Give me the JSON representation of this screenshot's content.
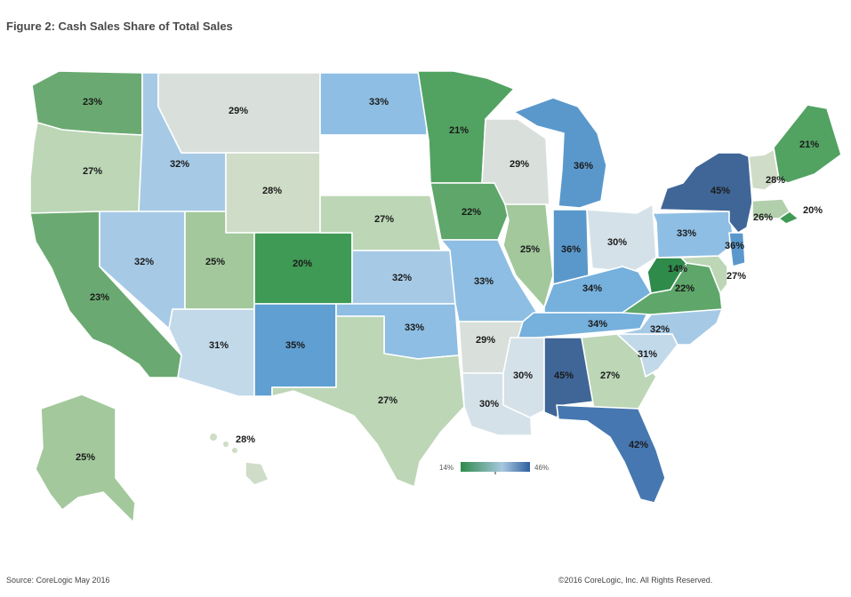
{
  "title": "Figure 2: Cash Sales Share of Total Sales",
  "source": "Source: CoreLogic May 2016",
  "copyright": "©2016 CoreLogic, Inc. All Rights Reserved.",
  "legend": {
    "min_label": "14%",
    "max_label": "46%",
    "low_color": "#2e8b4a",
    "mid_color": "#a8c8e0",
    "high_color": "#2f5f9e"
  },
  "states": [
    {
      "id": "WA",
      "value": 23,
      "color": "#6aaa72"
    },
    {
      "id": "OR",
      "value": 27,
      "color": "#bcd6b6"
    },
    {
      "id": "CA",
      "value": 23,
      "color": "#6aaa72"
    },
    {
      "id": "ID",
      "value": 32,
      "color": "#a6cae6"
    },
    {
      "id": "NV",
      "value": 32,
      "color": "#a6cae6"
    },
    {
      "id": "MT",
      "value": 29,
      "color": "#d9dfdb"
    },
    {
      "id": "WY",
      "value": 28,
      "color": "#cfdcc7"
    },
    {
      "id": "UT",
      "value": 25,
      "color": "#a2c89c"
    },
    {
      "id": "AZ",
      "value": 31,
      "color": "#c2d9ea"
    },
    {
      "id": "CO",
      "value": 20,
      "color": "#3e9a54"
    },
    {
      "id": "NM",
      "value": 35,
      "color": "#5f9fd2"
    },
    {
      "id": "ND",
      "value": 33,
      "color": "#8ebee3"
    },
    {
      "id": "SD",
      "value": null,
      "color": "#ffffff"
    },
    {
      "id": "NE",
      "value": 27,
      "color": "#bcd6b6"
    },
    {
      "id": "KS",
      "value": 32,
      "color": "#a6cae6"
    },
    {
      "id": "OK",
      "value": 33,
      "color": "#8ebee3"
    },
    {
      "id": "TX",
      "value": 27,
      "color": "#bcd6b6"
    },
    {
      "id": "MN",
      "value": 21,
      "color": "#52a262"
    },
    {
      "id": "IA",
      "value": 22,
      "color": "#5ea66a"
    },
    {
      "id": "MO",
      "value": 33,
      "color": "#8ebee3"
    },
    {
      "id": "AR",
      "value": 29,
      "color": "#d9dfdb"
    },
    {
      "id": "LA",
      "value": 30,
      "color": "#d5e1e8"
    },
    {
      "id": "WI",
      "value": 29,
      "color": "#d9dfdb"
    },
    {
      "id": "IL",
      "value": 25,
      "color": "#a2c89c"
    },
    {
      "id": "MI",
      "value": 36,
      "color": "#5a98cc"
    },
    {
      "id": "IN",
      "value": 36,
      "color": "#5a98cc"
    },
    {
      "id": "OH",
      "value": 30,
      "color": "#d5e1e8"
    },
    {
      "id": "KY",
      "value": 34,
      "color": "#76b0dc"
    },
    {
      "id": "TN",
      "value": 34,
      "color": "#76b0dc"
    },
    {
      "id": "MS",
      "value": 30,
      "color": "#d5e1e8"
    },
    {
      "id": "AL",
      "value": 45,
      "color": "#3f6696"
    },
    {
      "id": "GA",
      "value": 27,
      "color": "#bcd6b6"
    },
    {
      "id": "FL",
      "value": 42,
      "color": "#4677b0"
    },
    {
      "id": "SC",
      "value": 31,
      "color": "#c2d9ea"
    },
    {
      "id": "NC",
      "value": 32,
      "color": "#a6cae6"
    },
    {
      "id": "VA",
      "value": 22,
      "color": "#5ea66a"
    },
    {
      "id": "WV",
      "value": 14,
      "color": "#2e8b4a"
    },
    {
      "id": "MD",
      "value": 27,
      "color": "#bcd6b6"
    },
    {
      "id": "PA",
      "value": 33,
      "color": "#8ebee3"
    },
    {
      "id": "NJ",
      "value": 36,
      "color": "#5a98cc"
    },
    {
      "id": "NY",
      "value": 45,
      "color": "#3f6696"
    },
    {
      "id": "VT",
      "value": 28,
      "color": "#cfdcc7"
    },
    {
      "id": "MA",
      "value": 26,
      "color": "#b2cfab"
    },
    {
      "id": "RI",
      "value": 20,
      "color": "#3e9a54"
    },
    {
      "id": "ME",
      "value": 21,
      "color": "#52a262"
    },
    {
      "id": "AK",
      "value": 25,
      "color": "#a2c89c"
    },
    {
      "id": "HI",
      "value": 28,
      "color": "#cfdcc7"
    }
  ],
  "labels": [
    {
      "state": "WA",
      "text": "23%"
    },
    {
      "state": "OR",
      "text": "27%"
    },
    {
      "state": "CA",
      "text": "23%"
    },
    {
      "state": "ID",
      "text": "32%"
    },
    {
      "state": "NV",
      "text": "32%"
    },
    {
      "state": "MT",
      "text": "29%"
    },
    {
      "state": "WY",
      "text": "28%"
    },
    {
      "state": "UT",
      "text": "25%"
    },
    {
      "state": "AZ",
      "text": "31%"
    },
    {
      "state": "CO",
      "text": "20%"
    },
    {
      "state": "NM",
      "text": "35%"
    },
    {
      "state": "ND",
      "text": "33%"
    },
    {
      "state": "NE",
      "text": "27%"
    },
    {
      "state": "KS",
      "text": "32%"
    },
    {
      "state": "OK",
      "text": "33%"
    },
    {
      "state": "TX",
      "text": "27%"
    },
    {
      "state": "MN",
      "text": "21%"
    },
    {
      "state": "IA",
      "text": "22%"
    },
    {
      "state": "MO",
      "text": "33%"
    },
    {
      "state": "AR",
      "text": "29%"
    },
    {
      "state": "LA",
      "text": "30%"
    },
    {
      "state": "WI",
      "text": "29%"
    },
    {
      "state": "IL",
      "text": "25%"
    },
    {
      "state": "MI",
      "text": "36%"
    },
    {
      "state": "IN",
      "text": "36%"
    },
    {
      "state": "OH",
      "text": "30%"
    },
    {
      "state": "KY",
      "text": "34%"
    },
    {
      "state": "TN",
      "text": "34%"
    },
    {
      "state": "MS",
      "text": "30%"
    },
    {
      "state": "AL",
      "text": "45%"
    },
    {
      "state": "GA",
      "text": "27%"
    },
    {
      "state": "FL",
      "text": "42%"
    },
    {
      "state": "SC",
      "text": "31%"
    },
    {
      "state": "NC",
      "text": "32%"
    },
    {
      "state": "VA",
      "text": "22%"
    },
    {
      "state": "WV",
      "text": "14%"
    },
    {
      "state": "MD",
      "text": "27%"
    },
    {
      "state": "PA",
      "text": "33%"
    },
    {
      "state": "NJ",
      "text": "36%"
    },
    {
      "state": "NY",
      "text": "45%"
    },
    {
      "state": "VT",
      "text": "28%"
    },
    {
      "state": "MA",
      "text": "26%"
    },
    {
      "state": "RI",
      "text": "20%"
    },
    {
      "state": "ME",
      "text": "21%"
    },
    {
      "state": "AK",
      "text": "25%"
    },
    {
      "state": "HI",
      "text": "28%"
    }
  ]
}
